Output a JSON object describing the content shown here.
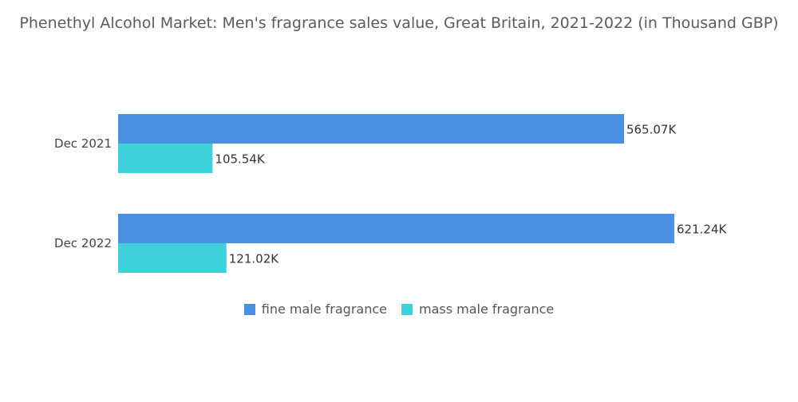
{
  "chart_data": {
    "type": "bar",
    "orientation": "horizontal",
    "title": "Phenethyl Alcohol Market: Men's fragrance sales value, Great Britain, 2021-2022 (in Thousand GBP)",
    "categories": [
      "Dec 2021",
      "Dec 2022"
    ],
    "series": [
      {
        "name": "fine male fragrance",
        "values": [
          565.07,
          621.24
        ],
        "labels": [
          "565.07K",
          "621.24K"
        ],
        "color": "#4a90e2"
      },
      {
        "name": "mass male fragrance",
        "values": [
          105.54,
          121.02
        ],
        "labels": [
          "105.54K",
          "121.02K"
        ],
        "color": "#3fd1d9"
      }
    ],
    "xlim": [
      0,
      621.24
    ],
    "grid": false,
    "legend_position": "bottom"
  }
}
